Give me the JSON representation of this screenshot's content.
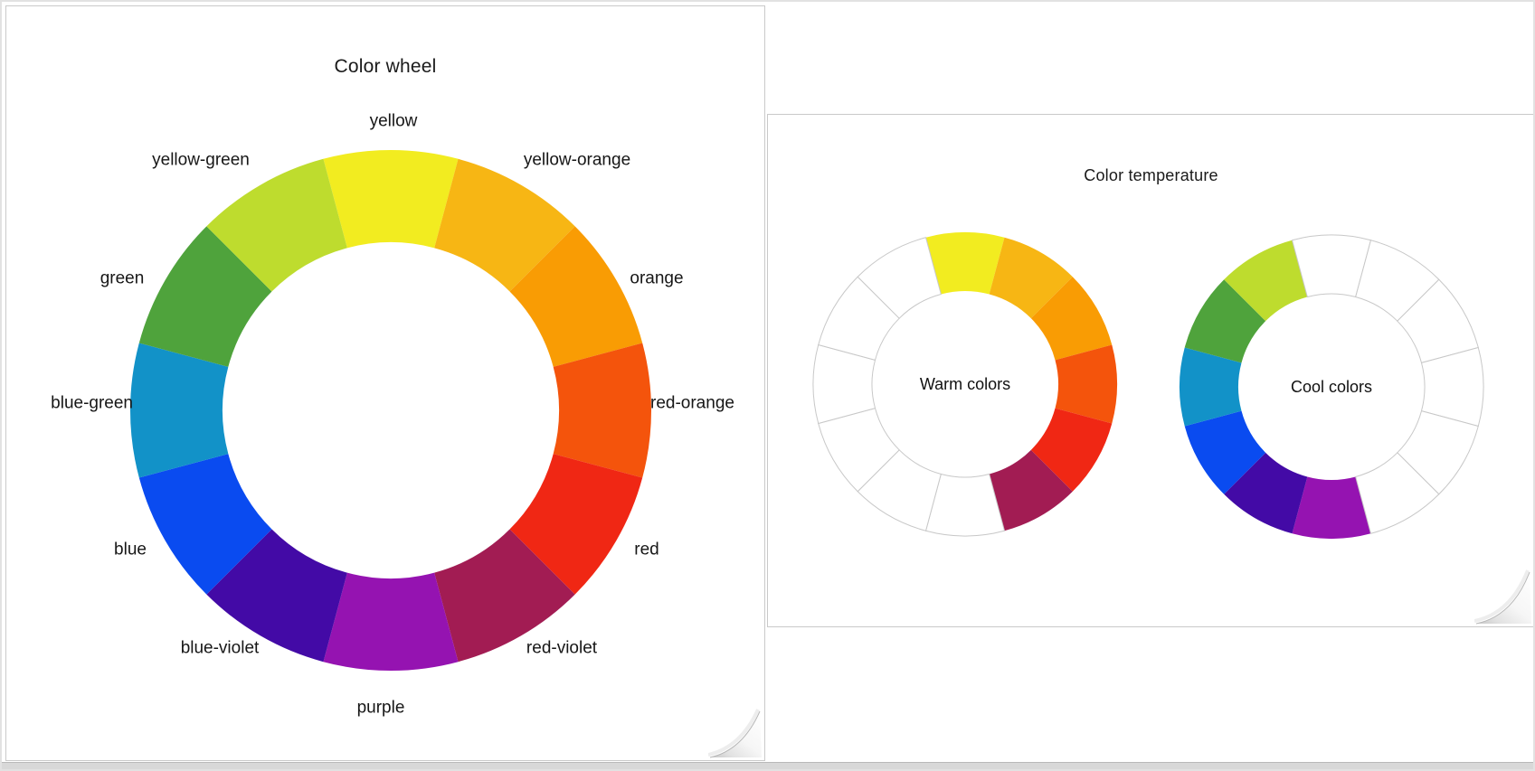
{
  "window": {
    "background": "#ffffff",
    "frame_color": "#e2e2e2",
    "bottom_edge_color": "#d8d8d8"
  },
  "left_panel": {
    "title": "Color wheel"
  },
  "right_panel": {
    "title": "Color temperature",
    "warm_wheel_label": "Warm colors",
    "cool_wheel_label": "Cool colors"
  },
  "chart_data": {
    "type": "pie",
    "variant": "donut-color-wheel",
    "start_angle_deg": -15,
    "segment_angle_deg": 30,
    "segments_clockwise_from_top": [
      {
        "label": "yellow",
        "color": "#F2EC20",
        "temperature": "warm"
      },
      {
        "label": "yellow-orange",
        "color": "#F7B614",
        "temperature": "warm"
      },
      {
        "label": "orange",
        "color": "#F99C04",
        "temperature": "warm"
      },
      {
        "label": "red-orange",
        "color": "#F4540C",
        "temperature": "warm"
      },
      {
        "label": "red",
        "color": "#F02714",
        "temperature": "warm"
      },
      {
        "label": "red-violet",
        "color": "#A21C53",
        "temperature": "warm"
      },
      {
        "label": "purple",
        "color": "#9513B1",
        "temperature": "cool"
      },
      {
        "label": "blue-violet",
        "color": "#430AA6",
        "temperature": "cool"
      },
      {
        "label": "blue",
        "color": "#0A4BF0",
        "temperature": "cool"
      },
      {
        "label": "blue-green",
        "color": "#1292C8",
        "temperature": "cool"
      },
      {
        "label": "green",
        "color": "#4FA33C",
        "temperature": "cool"
      },
      {
        "label": "yellow-green",
        "color": "#BEDC2E",
        "temperature": "cool"
      }
    ],
    "wheels": [
      {
        "id": "big-wheel",
        "title": "Color wheel",
        "show": "all",
        "labels": true
      },
      {
        "id": "warm-wheel",
        "center_label": "Warm colors",
        "show": "warm",
        "labels": false
      },
      {
        "id": "cool-wheel",
        "center_label": "Cool colors",
        "show": "cool",
        "labels": false
      }
    ],
    "empty_segment_fill": "#ffffff",
    "empty_segment_stroke": "#c8c8c8",
    "label_color": "#161616"
  }
}
